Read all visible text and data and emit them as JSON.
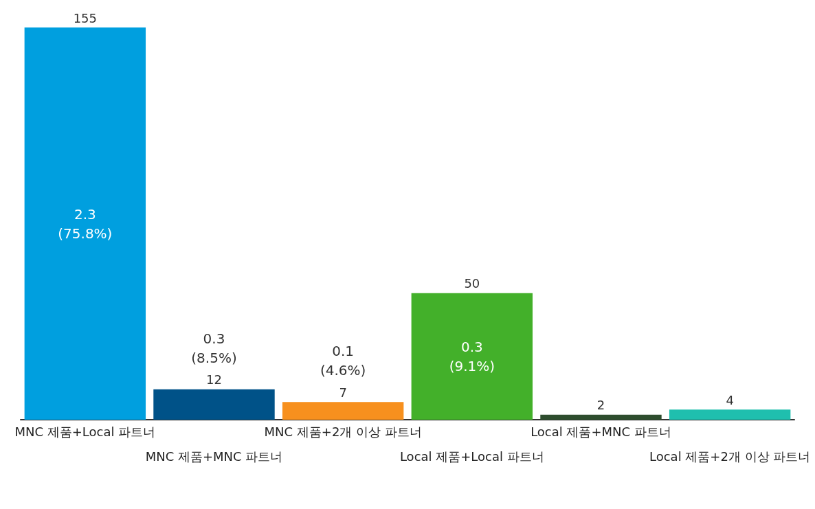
{
  "chart_data": {
    "type": "bar",
    "categories": [
      "MNC 제품+Local 파트너",
      "MNC 제품+MNC 파트너",
      "MNC 제품+2개 이상 파트너",
      "Local 제품+Local 파트너",
      "Local 제품+MNC 파트너",
      "Local 제품+2개 이상 파트너"
    ],
    "values": [
      155,
      12,
      7,
      50,
      2,
      4
    ],
    "colors": [
      "#009fdf",
      "#005288",
      "#f7901e",
      "#43b02a",
      "#2e4d2e",
      "#1fbfae"
    ],
    "data_labels": true,
    "tick_labels": "x",
    "grid": false,
    "annotations": [
      "2.3\n(75.8%)",
      "0.3\n(8.5%)",
      "0.1\n(4.6%)",
      "0.3\n(9.1%)"
    ]
  }
}
